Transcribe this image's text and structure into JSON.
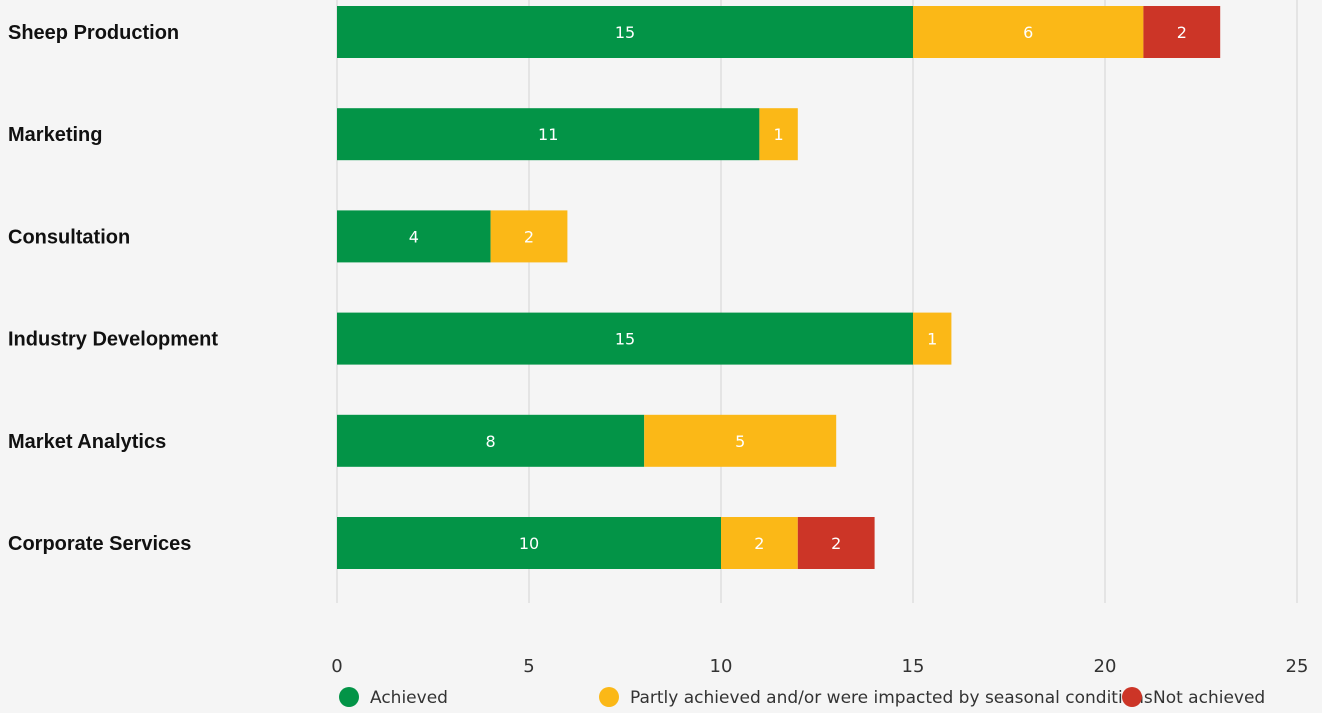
{
  "chart_data": {
    "type": "bar",
    "orientation": "horizontal",
    "stacked": true,
    "categories": [
      "Sheep Production",
      "Marketing",
      "Consultation",
      "Industry Development",
      "Market Analytics",
      "Corporate Services"
    ],
    "series": [
      {
        "name": "Achieved",
        "color": "#039447",
        "values": [
          15,
          11,
          4,
          15,
          8,
          10
        ]
      },
      {
        "name": "Partly achieved and/or were impacted by seasonal conditions",
        "color": "#fbb817",
        "values": [
          6,
          1,
          2,
          1,
          5,
          2
        ]
      },
      {
        "name": "Not achieved",
        "color": "#cc3527",
        "values": [
          2,
          0,
          0,
          0,
          0,
          2
        ]
      }
    ],
    "xlim": [
      0,
      25
    ],
    "xticks": [
      "0",
      "5",
      "10",
      "15",
      "20",
      "25"
    ],
    "grid": true,
    "legend_position": "bottom"
  }
}
